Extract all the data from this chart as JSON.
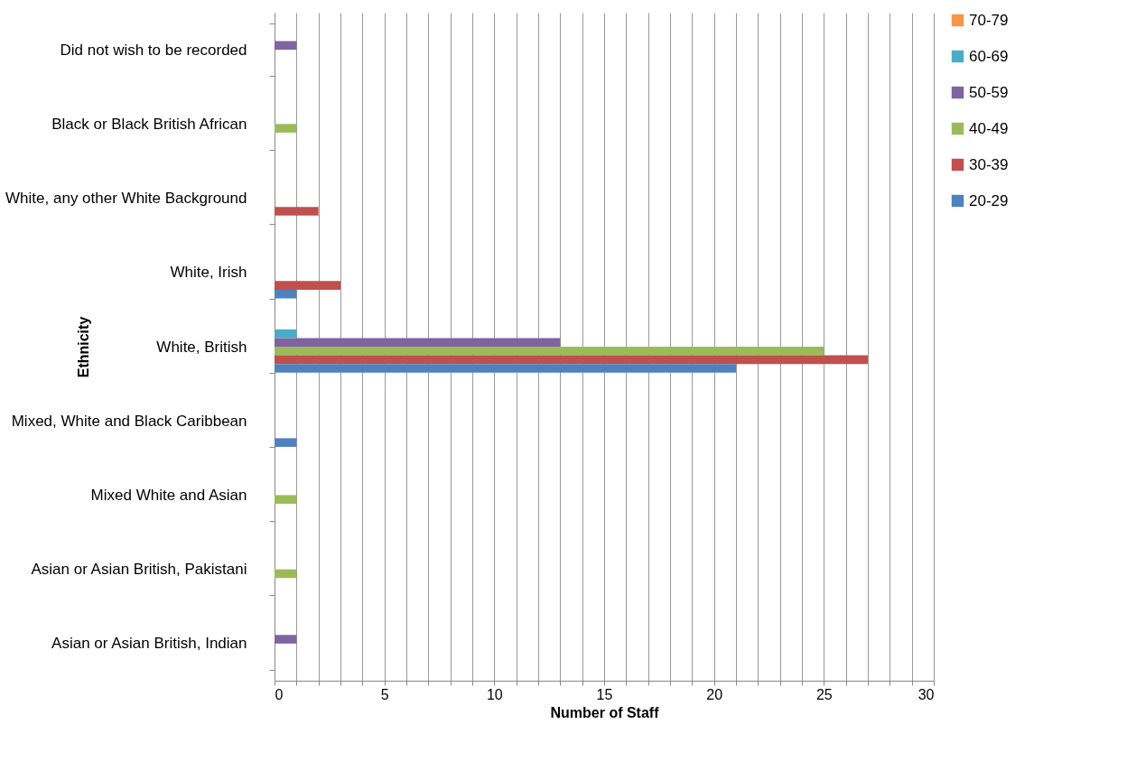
{
  "chart_data": {
    "type": "bar",
    "orientation": "horizontal",
    "xlabel": "Number of Staff",
    "ylabel": "Ethnicity",
    "categories": [
      "Did not wish to be recorded",
      "Black or Black British African",
      "White, any other White Background",
      "White, Irish",
      "White, British",
      "Mixed, White and Black Caribbean",
      "Mixed White and Asian",
      "Asian or Asian British, Pakistani",
      "Asian or Asian British, Indian"
    ],
    "series": [
      {
        "name": "70-79",
        "color": "#f79646",
        "values": [
          null,
          null,
          null,
          null,
          null,
          null,
          null,
          null,
          null
        ]
      },
      {
        "name": "60-69",
        "color": "#4bacc6",
        "values": [
          null,
          null,
          null,
          null,
          1,
          null,
          null,
          null,
          null
        ]
      },
      {
        "name": "50-59",
        "color": "#8064a2",
        "values": [
          1,
          null,
          null,
          null,
          13,
          null,
          null,
          null,
          1
        ]
      },
      {
        "name": "40-49",
        "color": "#9bbb59",
        "values": [
          null,
          1,
          null,
          null,
          25,
          null,
          1,
          1,
          null
        ]
      },
      {
        "name": "30-39",
        "color": "#c0504d",
        "values": [
          null,
          null,
          2,
          3,
          27,
          null,
          null,
          null,
          null
        ]
      },
      {
        "name": "20-29",
        "color": "#4f81bd",
        "values": [
          null,
          null,
          null,
          1,
          21,
          1,
          null,
          null,
          null
        ]
      }
    ],
    "xlim": [
      0,
      30
    ],
    "xticks": [
      0,
      {
        "value": 1,
        "label": null
      },
      {
        "value": 2,
        "label": null
      },
      {
        "value": 3,
        "label": null
      },
      {
        "value": 4,
        "label": null
      },
      5,
      {
        "value": 6,
        "label": null
      },
      {
        "value": 7,
        "label": null
      },
      {
        "value": 8,
        "label": null
      },
      {
        "value": 9,
        "label": null
      },
      10,
      {
        "value": 11,
        "label": null
      },
      {
        "value": 12,
        "label": null
      },
      {
        "value": 13,
        "label": null
      },
      {
        "value": 14,
        "label": null
      },
      15,
      {
        "value": 16,
        "label": null
      },
      {
        "value": 17,
        "label": null
      },
      {
        "value": 18,
        "label": null
      },
      {
        "value": 19,
        "label": null
      },
      20,
      {
        "value": 21,
        "label": null
      },
      {
        "value": 22,
        "label": null
      },
      {
        "value": 23,
        "label": null
      },
      {
        "value": 24,
        "label": null
      },
      25,
      {
        "value": 26,
        "label": null
      },
      {
        "value": 27,
        "label": null
      },
      {
        "value": 28,
        "label": null
      },
      {
        "value": 29,
        "label": null
      },
      30
    ],
    "grid": "x",
    "legend": "right"
  }
}
